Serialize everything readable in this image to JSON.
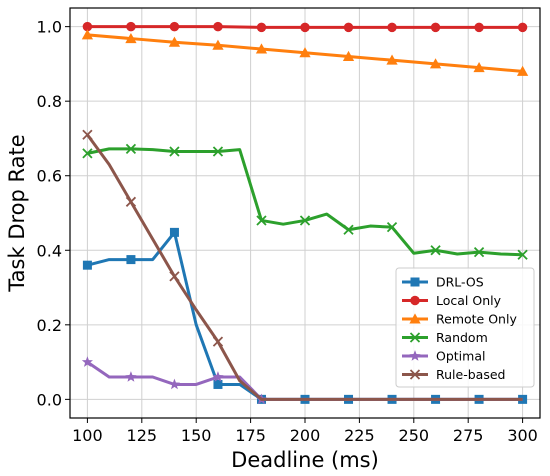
{
  "chart_data": {
    "type": "line",
    "xlabel": "Deadline (ms)",
    "ylabel": "Task Drop Rate",
    "xlim": [
      92,
      308
    ],
    "ylim": [
      -0.05,
      1.05
    ],
    "xticks": [
      100,
      125,
      150,
      175,
      200,
      225,
      250,
      275,
      300
    ],
    "yticks": [
      0.0,
      0.2,
      0.4,
      0.6,
      0.8,
      1.0
    ],
    "xtick_labels": [
      "100",
      "125",
      "150",
      "175",
      "200",
      "225",
      "250",
      "275",
      "300"
    ],
    "ytick_labels": [
      "0.0",
      "0.2",
      "0.4",
      "0.6",
      "0.8",
      "1.0"
    ],
    "grid": true,
    "legend_position": "lower-right",
    "series": [
      {
        "name": "DRL-OS",
        "color": "#1f77b4",
        "marker": "square",
        "x": [
          100,
          110,
          120,
          130,
          140,
          150,
          160,
          170,
          180,
          200,
          220,
          240,
          260,
          280,
          300
        ],
        "y": [
          0.36,
          0.375,
          0.375,
          0.375,
          0.448,
          0.2,
          0.04,
          0.04,
          0.0,
          0.0,
          0.0,
          0.0,
          0.0,
          0.0,
          0.0
        ],
        "markers": [
          0,
          2,
          4,
          6,
          8,
          9,
          10,
          11,
          12,
          13,
          14
        ]
      },
      {
        "name": "Local Only",
        "color": "#d62728",
        "marker": "circle",
        "x": [
          100,
          120,
          140,
          160,
          180,
          200,
          220,
          240,
          260,
          280,
          300
        ],
        "y": [
          1.0,
          1.0,
          1.0,
          1.0,
          0.998,
          0.998,
          0.998,
          0.998,
          0.998,
          0.998,
          0.998
        ],
        "markers": [
          0,
          1,
          2,
          3,
          4,
          5,
          6,
          7,
          8,
          9,
          10
        ]
      },
      {
        "name": "Remote Only",
        "color": "#ff7f0e",
        "marker": "triangle",
        "x": [
          100,
          120,
          140,
          160,
          180,
          200,
          220,
          240,
          260,
          280,
          300
        ],
        "y": [
          0.978,
          0.968,
          0.958,
          0.95,
          0.94,
          0.93,
          0.92,
          0.91,
          0.9,
          0.89,
          0.88
        ],
        "markers": [
          0,
          1,
          2,
          3,
          4,
          5,
          6,
          7,
          8,
          9,
          10
        ]
      },
      {
        "name": "Random",
        "color": "#2ca02c",
        "marker": "x",
        "x": [
          100,
          110,
          120,
          130,
          140,
          150,
          160,
          170,
          180,
          190,
          200,
          210,
          220,
          230,
          240,
          250,
          260,
          270,
          280,
          290,
          300
        ],
        "y": [
          0.66,
          0.672,
          0.672,
          0.67,
          0.665,
          0.665,
          0.665,
          0.67,
          0.48,
          0.47,
          0.48,
          0.497,
          0.455,
          0.465,
          0.462,
          0.392,
          0.4,
          0.39,
          0.395,
          0.39,
          0.388
        ],
        "markers": [
          0,
          2,
          4,
          6,
          8,
          10,
          12,
          14,
          16,
          18,
          20
        ]
      },
      {
        "name": "Optimal",
        "color": "#9467bd",
        "marker": "star",
        "x": [
          100,
          110,
          120,
          130,
          140,
          150,
          160,
          170,
          180,
          200,
          220,
          240,
          260,
          280,
          300
        ],
        "y": [
          0.1,
          0.06,
          0.06,
          0.06,
          0.04,
          0.04,
          0.06,
          0.06,
          0.0,
          0.0,
          0.0,
          0.0,
          0.0,
          0.0,
          0.0
        ],
        "markers": [
          0,
          2,
          4,
          6,
          8
        ]
      },
      {
        "name": "Rule-based",
        "color": "#8c564b",
        "marker": "x",
        "x": [
          100,
          110,
          120,
          130,
          140,
          150,
          160,
          170,
          180,
          200,
          220,
          240,
          260,
          280,
          300
        ],
        "y": [
          0.71,
          0.63,
          0.53,
          0.43,
          0.33,
          0.24,
          0.155,
          0.05,
          0.0,
          0.0,
          0.0,
          0.0,
          0.0,
          0.0,
          0.0
        ],
        "markers": [
          0,
          2,
          4,
          6
        ]
      }
    ]
  }
}
